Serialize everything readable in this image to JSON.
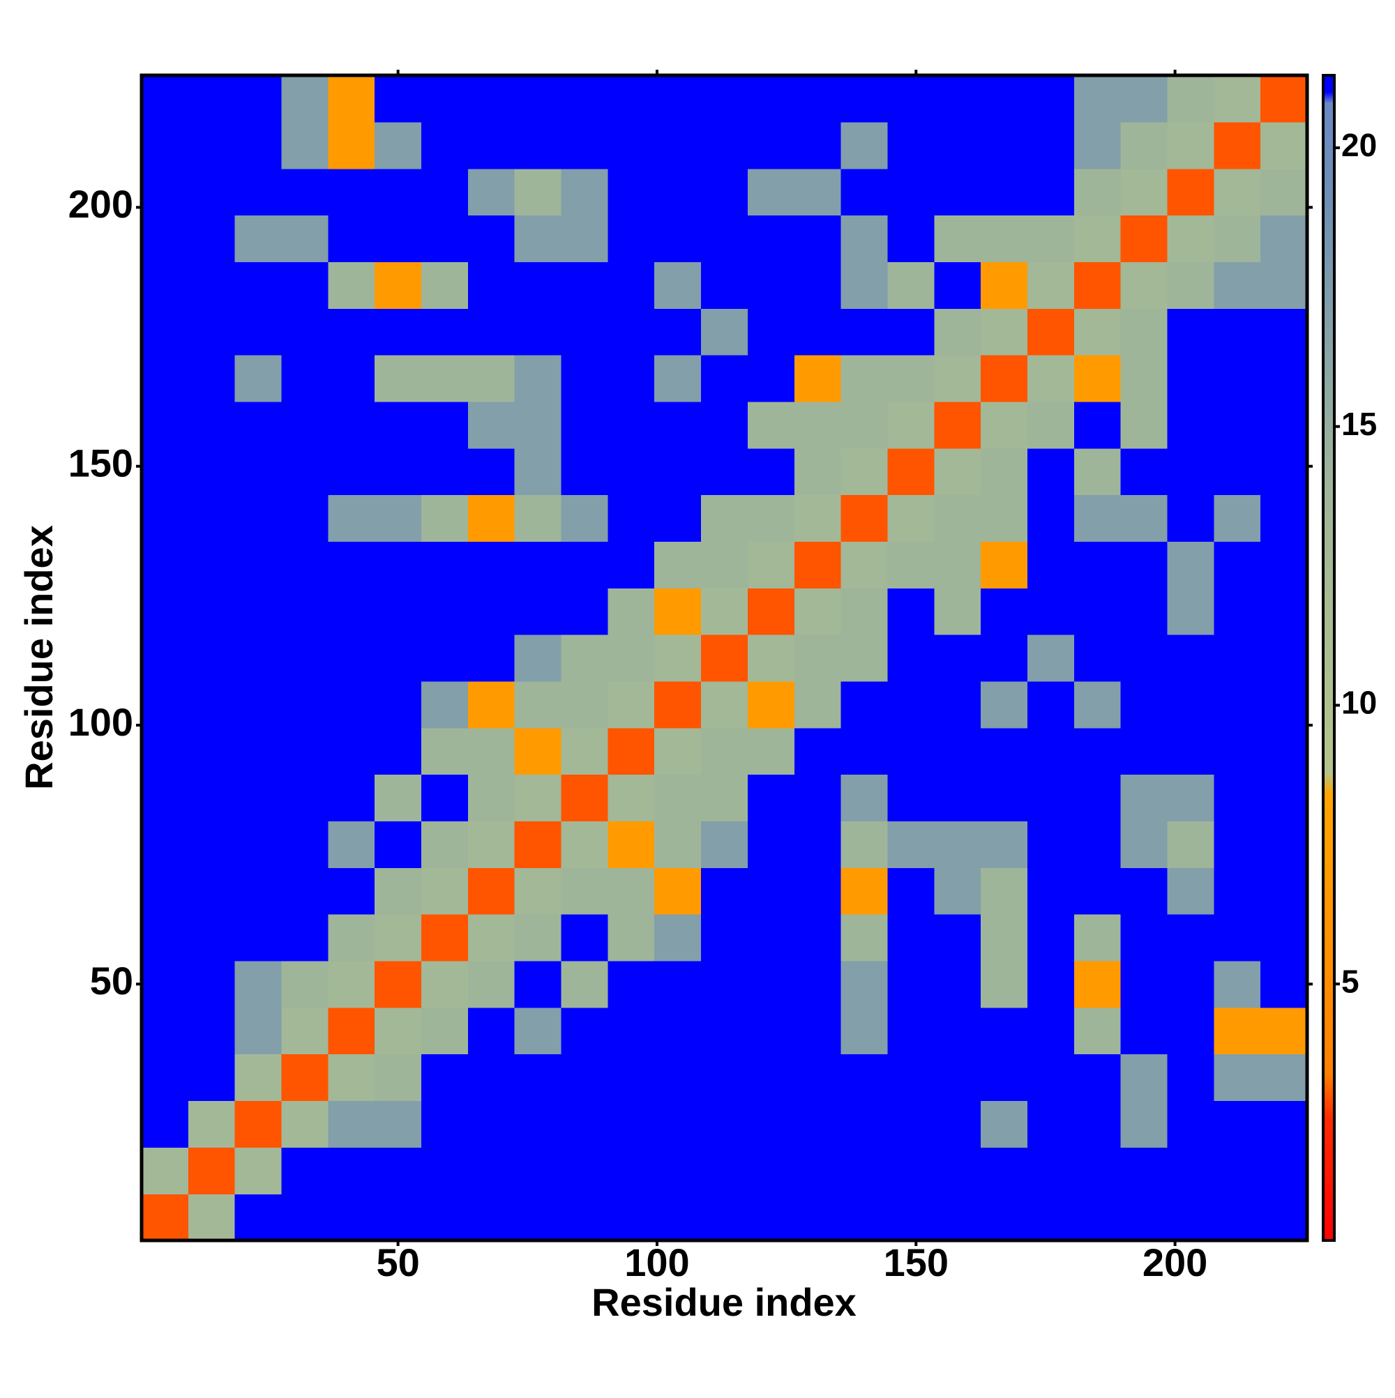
{
  "chart_data": {
    "type": "heatmap",
    "x_label": "Residue index",
    "y_label": "Residue index",
    "xlim": [
      0.5,
      225.5
    ],
    "ylim": [
      0.5,
      225.5
    ],
    "xticks": [
      50,
      100,
      150,
      200
    ],
    "yticks": [
      50,
      100,
      150,
      200
    ],
    "xbins": [
      0.5,
      9.5,
      18.5,
      27.5,
      36.5,
      45.5,
      54.5,
      63.5,
      72.5,
      81.5,
      90.5,
      99.5,
      108.5,
      117.5,
      126.5,
      135.5,
      144.5,
      153.5,
      162.5,
      171.5,
      180.5,
      189.5,
      198.5,
      207.5,
      216.5,
      225.5
    ],
    "ybins": [
      0.5,
      9.5,
      18.5,
      27.5,
      36.5,
      45.5,
      54.5,
      63.5,
      72.5,
      81.5,
      90.5,
      99.5,
      108.5,
      117.5,
      126.5,
      135.5,
      144.5,
      153.5,
      162.5,
      171.5,
      180.5,
      189.5,
      198.5,
      207.5,
      216.5,
      225.5
    ],
    "z": [
      [
        3,
        13,
        22,
        22,
        22,
        22,
        22,
        22,
        22,
        22,
        22,
        22,
        22,
        22,
        22,
        22,
        22,
        22,
        22,
        22,
        22,
        22,
        22,
        22,
        22
      ],
      [
        13,
        3,
        13,
        22,
        22,
        22,
        22,
        22,
        22,
        22,
        22,
        22,
        22,
        22,
        22,
        22,
        22,
        22,
        22,
        22,
        22,
        22,
        22,
        22,
        22
      ],
      [
        22,
        13,
        3,
        13,
        17,
        17,
        22,
        22,
        22,
        22,
        22,
        22,
        22,
        22,
        22,
        22,
        22,
        22,
        17,
        22,
        22,
        17,
        22,
        22,
        22
      ],
      [
        22,
        22,
        13,
        3,
        13,
        14,
        22,
        22,
        22,
        22,
        22,
        22,
        22,
        22,
        22,
        22,
        22,
        22,
        22,
        22,
        22,
        17,
        22,
        17,
        17
      ],
      [
        22,
        22,
        17,
        13,
        3,
        13,
        14,
        22,
        17,
        22,
        22,
        22,
        22,
        22,
        22,
        17,
        22,
        22,
        22,
        22,
        14,
        22,
        22,
        7,
        7
      ],
      [
        22,
        22,
        17,
        14,
        13,
        3,
        13,
        14,
        22,
        14,
        22,
        22,
        22,
        22,
        22,
        17,
        22,
        22,
        14,
        22,
        7,
        22,
        22,
        17,
        22
      ],
      [
        22,
        22,
        22,
        22,
        14,
        13,
        3,
        13,
        14,
        22,
        14,
        17,
        22,
        22,
        22,
        14,
        22,
        22,
        14,
        22,
        14,
        22,
        22,
        22,
        22
      ],
      [
        22,
        22,
        22,
        22,
        22,
        14,
        13,
        3,
        13,
        14,
        14,
        7,
        22,
        22,
        22,
        7,
        22,
        17,
        14,
        22,
        22,
        22,
        17,
        22,
        22
      ],
      [
        22,
        22,
        22,
        22,
        17,
        22,
        14,
        13,
        3,
        13,
        7,
        14,
        17,
        22,
        22,
        14,
        17,
        17,
        17,
        22,
        22,
        17,
        14,
        22,
        22
      ],
      [
        22,
        22,
        22,
        22,
        22,
        14,
        22,
        14,
        13,
        3,
        13,
        14,
        14,
        22,
        22,
        17,
        22,
        22,
        22,
        22,
        22,
        17,
        17,
        22,
        22
      ],
      [
        22,
        22,
        22,
        22,
        22,
        22,
        14,
        14,
        7,
        13,
        3,
        13,
        14,
        14,
        22,
        22,
        22,
        22,
        22,
        22,
        22,
        22,
        22,
        22,
        22
      ],
      [
        22,
        22,
        22,
        22,
        22,
        22,
        17,
        7,
        14,
        14,
        13,
        3,
        13,
        7,
        14,
        22,
        22,
        22,
        17,
        22,
        17,
        22,
        22,
        22,
        22
      ],
      [
        22,
        22,
        22,
        22,
        22,
        22,
        22,
        22,
        17,
        14,
        14,
        13,
        3,
        13,
        14,
        14,
        22,
        22,
        22,
        17,
        22,
        22,
        22,
        22,
        22
      ],
      [
        22,
        22,
        22,
        22,
        22,
        22,
        22,
        22,
        22,
        22,
        14,
        7,
        13,
        3,
        13,
        14,
        22,
        14,
        22,
        22,
        22,
        22,
        17,
        22,
        22
      ],
      [
        22,
        22,
        22,
        22,
        22,
        22,
        22,
        22,
        22,
        22,
        22,
        14,
        14,
        13,
        3,
        13,
        14,
        14,
        7,
        22,
        22,
        22,
        17,
        22,
        22
      ],
      [
        22,
        22,
        22,
        22,
        17,
        17,
        14,
        7,
        14,
        17,
        22,
        22,
        14,
        14,
        13,
        3,
        13,
        14,
        14,
        22,
        17,
        17,
        22,
        17,
        22
      ],
      [
        22,
        22,
        22,
        22,
        22,
        22,
        22,
        22,
        17,
        22,
        22,
        22,
        22,
        22,
        14,
        13,
        3,
        13,
        14,
        22,
        14,
        22,
        22,
        22,
        22
      ],
      [
        22,
        22,
        22,
        22,
        22,
        22,
        22,
        17,
        17,
        22,
        22,
        22,
        22,
        14,
        14,
        14,
        13,
        3,
        13,
        14,
        22,
        14,
        22,
        22,
        22
      ],
      [
        22,
        22,
        17,
        22,
        22,
        14,
        14,
        14,
        17,
        22,
        22,
        17,
        22,
        22,
        7,
        14,
        14,
        13,
        3,
        13,
        7,
        14,
        22,
        22,
        22
      ],
      [
        22,
        22,
        22,
        22,
        22,
        22,
        22,
        22,
        22,
        22,
        22,
        22,
        17,
        22,
        22,
        22,
        22,
        14,
        13,
        3,
        13,
        14,
        22,
        22,
        22
      ],
      [
        22,
        22,
        22,
        22,
        14,
        7,
        14,
        22,
        22,
        22,
        22,
        17,
        22,
        22,
        22,
        17,
        14,
        22,
        7,
        13,
        3,
        13,
        14,
        17,
        17
      ],
      [
        22,
        22,
        17,
        17,
        22,
        22,
        22,
        22,
        17,
        17,
        22,
        22,
        22,
        22,
        22,
        17,
        22,
        14,
        14,
        14,
        13,
        3,
        13,
        14,
        17
      ],
      [
        22,
        22,
        22,
        22,
        22,
        22,
        22,
        17,
        14,
        17,
        22,
        22,
        22,
        17,
        17,
        22,
        22,
        22,
        22,
        22,
        14,
        13,
        3,
        13,
        14
      ],
      [
        22,
        22,
        22,
        17,
        7,
        17,
        22,
        22,
        22,
        22,
        22,
        22,
        22,
        22,
        22,
        17,
        22,
        22,
        22,
        22,
        17,
        14,
        13,
        3,
        13
      ],
      [
        22,
        22,
        22,
        17,
        7,
        22,
        22,
        22,
        22,
        22,
        22,
        22,
        22,
        22,
        22,
        22,
        22,
        22,
        22,
        22,
        17,
        17,
        14,
        13,
        3
      ]
    ],
    "zlim": [
      0.4,
      21.3
    ],
    "zticks": [
      5,
      10,
      15,
      20
    ],
    "color_stops": [
      {
        "value": 0.4,
        "color": "#ff0000"
      },
      {
        "value": 2.6,
        "color": "#ff2a00"
      },
      {
        "value": 3.4,
        "color": "#ff8000"
      },
      {
        "value": 8.4,
        "color": "#ffa500"
      },
      {
        "value": 8.8,
        "color": "#b4c48a"
      },
      {
        "value": 14,
        "color": "#9fb59a"
      },
      {
        "value": 19,
        "color": "#6f90b4"
      },
      {
        "value": 20.8,
        "color": "#6a88c4"
      },
      {
        "value": 21,
        "color": "#0000ff"
      }
    ]
  }
}
